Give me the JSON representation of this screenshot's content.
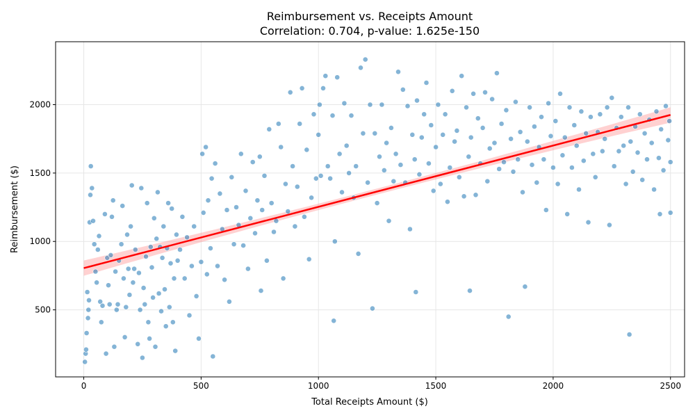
{
  "chart_data": {
    "type": "scatter",
    "title": "Reimbursement vs. Receipts Amount",
    "subtitle": "Correlation: 0.704, p-value: 1.625e-150",
    "xlabel": "Total Receipts Amount ($)",
    "ylabel": "Reimbursement ($)",
    "xlim": [
      -120,
      2560
    ],
    "ylim": [
      10,
      2460
    ],
    "xticks": [
      0,
      500,
      1000,
      1500,
      2000,
      2500
    ],
    "yticks": [
      500,
      1000,
      1500,
      2000
    ],
    "grid": true,
    "regression_line": {
      "x": [
        0,
        2500
      ],
      "y": [
        805,
        1925
      ],
      "color": "#ff0000"
    },
    "colors": {
      "points": "#1f77b4",
      "line": "#ff0000",
      "ci_band": "#ff9999"
    },
    "points": [
      [
        5,
        120
      ],
      [
        8,
        180
      ],
      [
        10,
        210
      ],
      [
        12,
        330
      ],
      [
        15,
        630
      ],
      [
        18,
        440
      ],
      [
        20,
        500
      ],
      [
        22,
        570
      ],
      [
        25,
        1140
      ],
      [
        28,
        1340
      ],
      [
        30,
        1550
      ],
      [
        35,
        1390
      ],
      [
        40,
        1150
      ],
      [
        45,
        980
      ],
      [
        50,
        780
      ],
      [
        55,
        700
      ],
      [
        60,
        940
      ],
      [
        65,
        1040
      ],
      [
        70,
        560
      ],
      [
        75,
        410
      ],
      [
        80,
        530
      ],
      [
        90,
        1200
      ],
      [
        95,
        180
      ],
      [
        100,
        880
      ],
      [
        105,
        680
      ],
      [
        110,
        540
      ],
      [
        115,
        900
      ],
      [
        120,
        1180
      ],
      [
        125,
        1300
      ],
      [
        130,
        230
      ],
      [
        135,
        780
      ],
      [
        140,
        500
      ],
      [
        145,
        540
      ],
      [
        150,
        860
      ],
      [
        160,
        980
      ],
      [
        165,
        1260
      ],
      [
        170,
        730
      ],
      [
        175,
        300
      ],
      [
        180,
        520
      ],
      [
        185,
        1050
      ],
      [
        190,
        800
      ],
      [
        195,
        610
      ],
      [
        200,
        1110
      ],
      [
        205,
        1410
      ],
      [
        210,
        700
      ],
      [
        215,
        800
      ],
      [
        220,
        940
      ],
      [
        230,
        250
      ],
      [
        235,
        770
      ],
      [
        240,
        500
      ],
      [
        245,
        1390
      ],
      [
        250,
        150
      ],
      [
        255,
        660
      ],
      [
        260,
        540
      ],
      [
        265,
        890
      ],
      [
        270,
        1280
      ],
      [
        275,
        410
      ],
      [
        280,
        290
      ],
      [
        285,
        960
      ],
      [
        290,
        810
      ],
      [
        295,
        590
      ],
      [
        300,
        1170
      ],
      [
        305,
        230
      ],
      [
        310,
        1020
      ],
      [
        315,
        1360
      ],
      [
        320,
        620
      ],
      [
        325,
        960
      ],
      [
        330,
        490
      ],
      [
        335,
        880
      ],
      [
        340,
        1110
      ],
      [
        345,
        650
      ],
      [
        350,
        380
      ],
      [
        355,
        950
      ],
      [
        360,
        1280
      ],
      [
        365,
        520
      ],
      [
        370,
        840
      ],
      [
        375,
        1240
      ],
      [
        380,
        410
      ],
      [
        385,
        730
      ],
      [
        390,
        200
      ],
      [
        395,
        1050
      ],
      [
        400,
        860
      ],
      [
        410,
        940
      ],
      [
        420,
        1180
      ],
      [
        430,
        730
      ],
      [
        440,
        1030
      ],
      [
        450,
        460
      ],
      [
        460,
        820
      ],
      [
        470,
        1110
      ],
      [
        480,
        600
      ],
      [
        490,
        290
      ],
      [
        500,
        850
      ],
      [
        505,
        1640
      ],
      [
        510,
        1210
      ],
      [
        520,
        1690
      ],
      [
        525,
        760
      ],
      [
        530,
        1300
      ],
      [
        540,
        950
      ],
      [
        545,
        1460
      ],
      [
        550,
        160
      ],
      [
        560,
        1570
      ],
      [
        570,
        820
      ],
      [
        580,
        1350
      ],
      [
        590,
        1090
      ],
      [
        600,
        720
      ],
      [
        610,
        1230
      ],
      [
        620,
        560
      ],
      [
        630,
        1470
      ],
      [
        640,
        980
      ],
      [
        650,
        1250
      ],
      [
        660,
        1120
      ],
      [
        670,
        1640
      ],
      [
        680,
        970
      ],
      [
        690,
        1370
      ],
      [
        700,
        800
      ],
      [
        710,
        1170
      ],
      [
        720,
        1580
      ],
      [
        730,
        1060
      ],
      [
        740,
        1300
      ],
      [
        750,
        1620
      ],
      [
        755,
        640
      ],
      [
        760,
        1230
      ],
      [
        770,
        1480
      ],
      [
        780,
        860
      ],
      [
        790,
        1820
      ],
      [
        800,
        1280
      ],
      [
        810,
        1070
      ],
      [
        820,
        1150
      ],
      [
        830,
        1860
      ],
      [
        840,
        1690
      ],
      [
        850,
        730
      ],
      [
        860,
        1420
      ],
      [
        870,
        1220
      ],
      [
        880,
        2090
      ],
      [
        890,
        1550
      ],
      [
        900,
        1110
      ],
      [
        910,
        1400
      ],
      [
        920,
        1860
      ],
      [
        930,
        2120
      ],
      [
        940,
        1180
      ],
      [
        950,
        1670
      ],
      [
        960,
        870
      ],
      [
        970,
        1320
      ],
      [
        980,
        1930
      ],
      [
        990,
        1460
      ],
      [
        1000,
        1780
      ],
      [
        1005,
        2000
      ],
      [
        1010,
        1480
      ],
      [
        1020,
        2120
      ],
      [
        1030,
        2210
      ],
      [
        1040,
        1550
      ],
      [
        1050,
        1460
      ],
      [
        1060,
        1920
      ],
      [
        1065,
        420
      ],
      [
        1070,
        1000
      ],
      [
        1080,
        2200
      ],
      [
        1090,
        1640
      ],
      [
        1100,
        1360
      ],
      [
        1110,
        2010
      ],
      [
        1120,
        1700
      ],
      [
        1130,
        1500
      ],
      [
        1140,
        1920
      ],
      [
        1150,
        1320
      ],
      [
        1160,
        1550
      ],
      [
        1170,
        910
      ],
      [
        1180,
        2270
      ],
      [
        1190,
        1790
      ],
      [
        1200,
        2330
      ],
      [
        1210,
        1430
      ],
      [
        1220,
        2000
      ],
      [
        1230,
        510
      ],
      [
        1240,
        1790
      ],
      [
        1250,
        1280
      ],
      [
        1260,
        1620
      ],
      [
        1270,
        2000
      ],
      [
        1280,
        1520
      ],
      [
        1290,
        1720
      ],
      [
        1300,
        1150
      ],
      [
        1310,
        1830
      ],
      [
        1320,
        1440
      ],
      [
        1330,
        1640
      ],
      [
        1340,
        2240
      ],
      [
        1350,
        1560
      ],
      [
        1360,
        2110
      ],
      [
        1370,
        1430
      ],
      [
        1380,
        1990
      ],
      [
        1390,
        1090
      ],
      [
        1400,
        1780
      ],
      [
        1410,
        1600
      ],
      [
        1415,
        630
      ],
      [
        1420,
        2030
      ],
      [
        1430,
        1490
      ],
      [
        1440,
        1760
      ],
      [
        1450,
        1930
      ],
      [
        1460,
        2160
      ],
      [
        1470,
        1570
      ],
      [
        1480,
        1850
      ],
      [
        1490,
        1370
      ],
      [
        1500,
        1690
      ],
      [
        1510,
        2000
      ],
      [
        1520,
        1420
      ],
      [
        1530,
        1780
      ],
      [
        1540,
        1930
      ],
      [
        1550,
        1290
      ],
      [
        1560,
        1540
      ],
      [
        1570,
        2100
      ],
      [
        1580,
        1730
      ],
      [
        1590,
        1810
      ],
      [
        1600,
        1470
      ],
      [
        1610,
        2210
      ],
      [
        1620,
        1330
      ],
      [
        1630,
        1980
      ],
      [
        1640,
        1620
      ],
      [
        1645,
        640
      ],
      [
        1650,
        1760
      ],
      [
        1660,
        2080
      ],
      [
        1670,
        1340
      ],
      [
        1680,
        1900
      ],
      [
        1690,
        1570
      ],
      [
        1700,
        1830
      ],
      [
        1710,
        2090
      ],
      [
        1720,
        1440
      ],
      [
        1730,
        1680
      ],
      [
        1740,
        2040
      ],
      [
        1750,
        1720
      ],
      [
        1760,
        2230
      ],
      [
        1770,
        1530
      ],
      [
        1780,
        1860
      ],
      [
        1790,
        1580
      ],
      [
        1800,
        1960
      ],
      [
        1810,
        450
      ],
      [
        1820,
        1750
      ],
      [
        1830,
        1510
      ],
      [
        1840,
        2020
      ],
      [
        1850,
        1600
      ],
      [
        1860,
        1800
      ],
      [
        1870,
        1360
      ],
      [
        1880,
        670
      ],
      [
        1890,
        1730
      ],
      [
        1900,
        1980
      ],
      [
        1910,
        1560
      ],
      [
        1920,
        1840
      ],
      [
        1930,
        1430
      ],
      [
        1940,
        1690
      ],
      [
        1950,
        1910
      ],
      [
        1960,
        1600
      ],
      [
        1970,
        1230
      ],
      [
        1980,
        2010
      ],
      [
        1990,
        1770
      ],
      [
        2000,
        1540
      ],
      [
        2010,
        1880
      ],
      [
        2020,
        1420
      ],
      [
        2030,
        2080
      ],
      [
        2040,
        1630
      ],
      [
        2050,
        1760
      ],
      [
        2060,
        1200
      ],
      [
        2070,
        1980
      ],
      [
        2080,
        1540
      ],
      [
        2090,
        1850
      ],
      [
        2100,
        1700
      ],
      [
        2110,
        1380
      ],
      [
        2120,
        1950
      ],
      [
        2130,
        1590
      ],
      [
        2140,
        1790
      ],
      [
        2150,
        1140
      ],
      [
        2160,
        1910
      ],
      [
        2170,
        1640
      ],
      [
        2180,
        1470
      ],
      [
        2190,
        1800
      ],
      [
        2200,
        1930
      ],
      [
        2210,
        1660
      ],
      [
        2220,
        1750
      ],
      [
        2230,
        1980
      ],
      [
        2240,
        1120
      ],
      [
        2250,
        2050
      ],
      [
        2260,
        1550
      ],
      [
        2270,
        1830
      ],
      [
        2280,
        1660
      ],
      [
        2290,
        1910
      ],
      [
        2300,
        1700
      ],
      [
        2310,
        1420
      ],
      [
        2320,
        1980
      ],
      [
        2325,
        320
      ],
      [
        2330,
        1730
      ],
      [
        2340,
        1510
      ],
      [
        2350,
        1840
      ],
      [
        2360,
        1650
      ],
      [
        2370,
        1930
      ],
      [
        2380,
        1450
      ],
      [
        2390,
        1790
      ],
      [
        2400,
        1600
      ],
      [
        2410,
        1890
      ],
      [
        2420,
        1720
      ],
      [
        2430,
        1380
      ],
      [
        2440,
        1950
      ],
      [
        2450,
        1610
      ],
      [
        2455,
        1200
      ],
      [
        2460,
        1820
      ],
      [
        2470,
        1520
      ],
      [
        2480,
        1990
      ],
      [
        2490,
        1740
      ],
      [
        2500,
        1580
      ],
      [
        2500,
        1210
      ],
      [
        2495,
        1880
      ]
    ]
  }
}
